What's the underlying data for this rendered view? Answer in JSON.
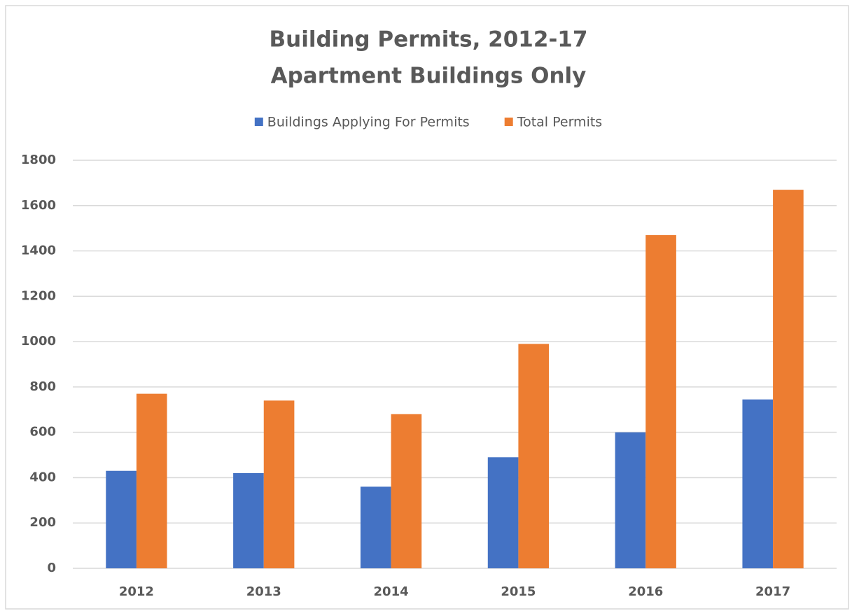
{
  "chart_data": {
    "type": "bar",
    "title": "Building Permits, 2012-17",
    "subtitle": "Apartment Buildings Only",
    "categories": [
      "2012",
      "2013",
      "2014",
      "2015",
      "2016",
      "2017"
    ],
    "series": [
      {
        "name": "Buildings Applying For Permits",
        "color": "#4472c4",
        "values": [
          430,
          420,
          360,
          490,
          600,
          745
        ]
      },
      {
        "name": "Total Permits",
        "color": "#ed7d31",
        "values": [
          770,
          740,
          680,
          990,
          1470,
          1670
        ]
      }
    ],
    "ylim": [
      0,
      1800
    ],
    "yticks": [
      0,
      200,
      400,
      600,
      800,
      1000,
      1200,
      1400,
      1600,
      1800
    ],
    "grid": true,
    "legend": "top"
  }
}
